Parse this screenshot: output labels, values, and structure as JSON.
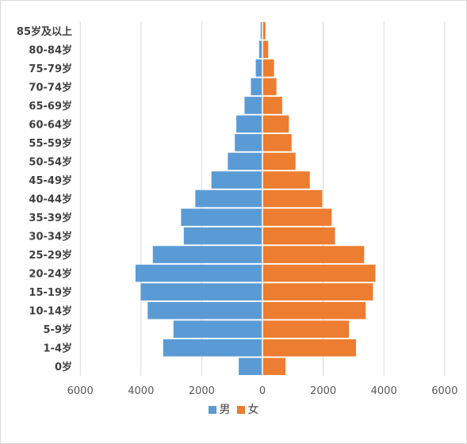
{
  "chart_data": {
    "type": "bar",
    "orientation": "horizontal-population-pyramid",
    "categories": [
      "0岁",
      "1-4岁",
      "5-9岁",
      "10-14岁",
      "15-19岁",
      "20-24岁",
      "25-29岁",
      "30-34岁",
      "35-39岁",
      "40-44岁",
      "45-49岁",
      "50-54岁",
      "55-59岁",
      "60-64岁",
      "65-69岁",
      "70-74岁",
      "75-79岁",
      "80-84岁",
      "85岁及以上"
    ],
    "series": [
      {
        "name": "男",
        "color": "#5b9bd5",
        "side": "left",
        "values": [
          780,
          3270,
          2930,
          3780,
          4010,
          4180,
          3610,
          2590,
          2680,
          2210,
          1680,
          1140,
          910,
          860,
          590,
          380,
          220,
          110,
          60
        ]
      },
      {
        "name": "女",
        "color": "#ed7d31",
        "side": "right",
        "values": [
          760,
          3080,
          2850,
          3400,
          3640,
          3720,
          3350,
          2390,
          2280,
          1970,
          1560,
          1090,
          960,
          870,
          650,
          460,
          380,
          190,
          100
        ]
      }
    ],
    "xaxis_ticks": [
      "6000",
      "4000",
      "2000",
      "0",
      "2000",
      "4000",
      "6000"
    ],
    "xlim": [
      -6000,
      6000
    ],
    "grid": true,
    "legend_position": "bottom",
    "title": "",
    "xlabel": "",
    "ylabel": ""
  }
}
